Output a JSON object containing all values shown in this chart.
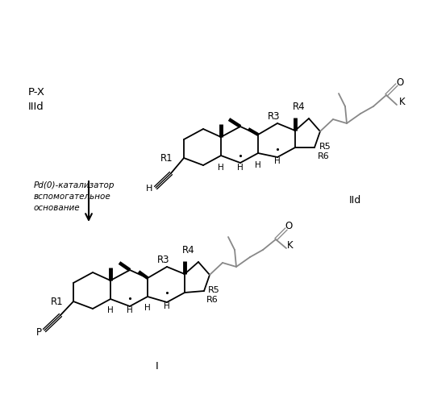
{
  "bg_color": "#ffffff",
  "figsize": [
    5.32,
    5.0
  ],
  "dpi": 100,
  "labels": {
    "PX": "P-X",
    "IIId": "IIId",
    "cat1": "Pd(0)-катализатор",
    "cat2": "вспомогательное",
    "cat3": "основание",
    "IId": "IId",
    "I": "I"
  },
  "gray": "#888888"
}
